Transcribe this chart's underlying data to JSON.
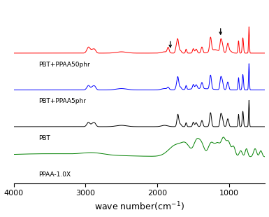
{
  "background_color": "#ffffff",
  "labels": [
    "PBT+PPAA50phr",
    "PBT+PPAA5phr",
    "PBT",
    "PPAA-1.0X"
  ],
  "colors": [
    "red",
    "blue",
    "black",
    "green"
  ],
  "xlabel": "wave number(cm$^{-1}$)",
  "xmin": 500,
  "xmax": 4000,
  "xticks": [
    4000,
    3000,
    2000,
    1000
  ],
  "offsets": [
    0.72,
    0.48,
    0.24,
    0.0
  ],
  "arrow1_wn": 1820,
  "arrow2_wn": 1120,
  "linewidth": 0.7
}
